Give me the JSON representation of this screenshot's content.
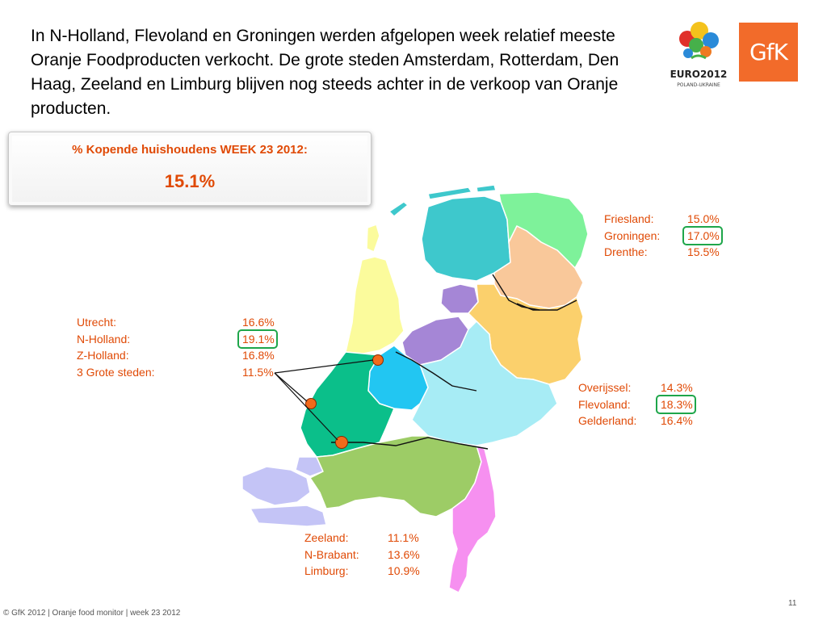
{
  "intro_text": "In N-Holland, Flevoland en Groningen werden afgelopen week relatief meeste Oranje Foodproducten verkocht. De grote steden Amsterdam, Rotterdam, Den Haag, Zeeland en Limburg blijven nog steeds achter in de verkoop van Oranje producten.",
  "logos": {
    "euro_text": "EURO2012",
    "euro_sub": "POLAND-UKRAINE",
    "gfk_text": "GfK"
  },
  "kpi": {
    "title": "% Kopende huishoudens WEEK 23 2012:",
    "value": "15.1%"
  },
  "stats": {
    "north": [
      {
        "label": "Friesland:",
        "value": "15.0%",
        "highlight": false
      },
      {
        "label": "Groningen:",
        "value": "17.0%",
        "highlight": true
      },
      {
        "label": "Drenthe:",
        "value": "15.5%",
        "highlight": false
      }
    ],
    "west": [
      {
        "label": "Utrecht:",
        "value": "16.6%",
        "highlight": false
      },
      {
        "label": "N-Holland:",
        "value": "19.1%",
        "highlight": true
      },
      {
        "label": "Z-Holland:",
        "value": "16.8%",
        "highlight": false
      },
      {
        "label": "3 Grote steden:",
        "value": "11.5%",
        "highlight": false
      }
    ],
    "east": [
      {
        "label": "Overijssel:",
        "value": "14.3%",
        "highlight": false
      },
      {
        "label": "Flevoland:",
        "value": "18.3%",
        "highlight": true
      },
      {
        "label": "Gelderland:",
        "value": "16.4%",
        "highlight": false
      }
    ],
    "south": [
      {
        "label": "Zeeland:",
        "value": "11.1%",
        "highlight": false
      },
      {
        "label": "N-Brabant:",
        "value": "13.6%",
        "highlight": false
      },
      {
        "label": "Limburg:",
        "value": "10.9%",
        "highlight": false
      }
    ]
  },
  "colors": {
    "accent": "#e04a06",
    "highlight_box": "#1ea64a",
    "friesland": "#3ec8cc",
    "groningen": "#7ef29a",
    "drenthe": "#f9c89a",
    "noord_holland": "#fbfb9c",
    "flevoland": "#a586d6",
    "overijssel": "#fbd06c",
    "gelderland": "#a7ecf5",
    "utrecht": "#22c6f2",
    "zuid_holland": "#0bbf8a",
    "zeeland": "#c4c4f6",
    "noord_brabant": "#9dcc66",
    "limburg": "#f690f0",
    "big_cities": "#f26a1b"
  },
  "footer": "© GfK 2012 | Oranje food monitor | week 23  2012",
  "page_number": "11"
}
